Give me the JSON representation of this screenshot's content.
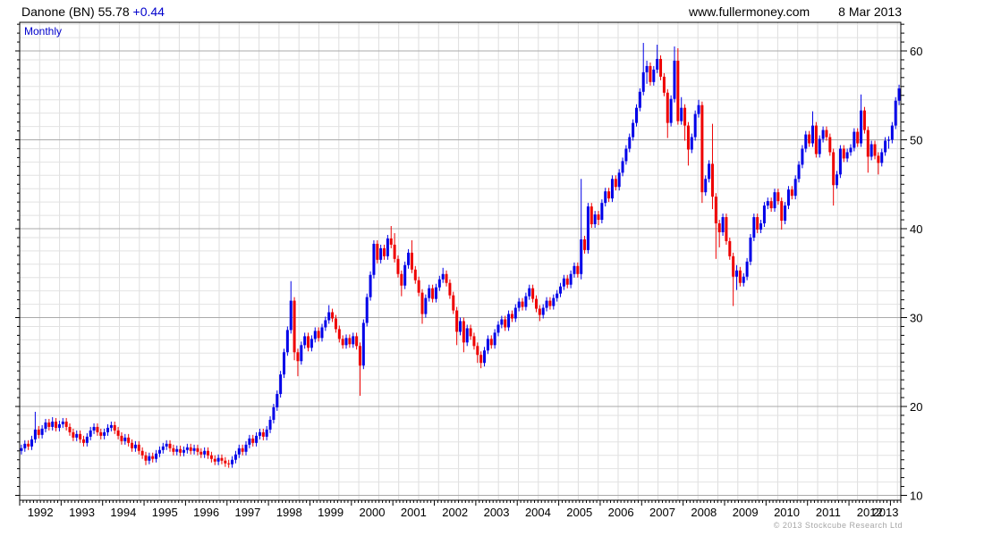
{
  "header": {
    "symbol_price": "Danone (BN) 55.78",
    "change": "+0.44",
    "website": "www.fullermoney.com",
    "date": "8 Mar 2013"
  },
  "chart": {
    "timeframe_label": "Monthly",
    "copyright": "© 2013 Stockcube Research Ltd"
  },
  "chart_data": {
    "type": "candlestick",
    "title": "Danone (BN)",
    "last_price": 55.78,
    "change": "+0.44",
    "timeframe": "Monthly",
    "x_start_year": 1992,
    "x_start_month": 1,
    "x_end_year": 2013,
    "x_end_month": 3,
    "x_tick_labels": [
      "1992",
      "1993",
      "1994",
      "1995",
      "1996",
      "1997",
      "1998",
      "1999",
      "2000",
      "2001",
      "2002",
      "2003",
      "2004",
      "2005",
      "2006",
      "2007",
      "2008",
      "2009",
      "2010",
      "2011",
      "2012",
      "2013"
    ],
    "y_ticks": [
      10,
      20,
      30,
      40,
      50,
      60
    ],
    "ylim": [
      9.5,
      63.2
    ],
    "grid": true,
    "up_color": "#0000e8",
    "down_color": "#ee0000",
    "ohlc_monthly": [
      [
        15.0,
        15.7,
        14.6,
        15.3
      ],
      [
        15.3,
        16.2,
        14.9,
        15.8
      ],
      [
        15.8,
        16.2,
        15.1,
        15.5
      ],
      [
        15.5,
        16.7,
        15.1,
        16.3
      ],
      [
        16.3,
        19.4,
        15.9,
        17.4
      ],
      [
        17.4,
        17.8,
        16.4,
        16.8
      ],
      [
        16.8,
        17.9,
        16.4,
        17.5
      ],
      [
        17.5,
        18.6,
        17.1,
        18.2
      ],
      [
        18.2,
        18.6,
        17.3,
        17.7
      ],
      [
        17.7,
        18.8,
        17.3,
        18.3
      ],
      [
        18.3,
        18.7,
        17.2,
        17.6
      ],
      [
        17.6,
        18.4,
        17.2,
        18.0
      ],
      [
        18.0,
        18.7,
        17.6,
        18.3
      ],
      [
        18.3,
        18.7,
        17.3,
        17.7
      ],
      [
        17.7,
        18.1,
        16.7,
        17.1
      ],
      [
        17.1,
        17.5,
        16.1,
        16.5
      ],
      [
        16.5,
        17.3,
        16.1,
        16.9
      ],
      [
        16.9,
        17.3,
        15.9,
        16.3
      ],
      [
        16.3,
        16.7,
        15.5,
        15.9
      ],
      [
        15.9,
        17.0,
        15.5,
        16.6
      ],
      [
        16.6,
        17.7,
        16.2,
        17.3
      ],
      [
        17.3,
        18.1,
        16.9,
        17.7
      ],
      [
        17.7,
        18.1,
        16.7,
        17.1
      ],
      [
        17.1,
        17.5,
        16.3,
        16.7
      ],
      [
        16.7,
        17.5,
        16.3,
        17.1
      ],
      [
        17.1,
        18.0,
        16.7,
        17.6
      ],
      [
        17.6,
        18.3,
        17.2,
        17.9
      ],
      [
        17.9,
        18.3,
        16.9,
        17.3
      ],
      [
        17.3,
        17.7,
        16.3,
        16.7
      ],
      [
        16.7,
        17.1,
        15.7,
        16.1
      ],
      [
        16.1,
        16.9,
        15.7,
        16.5
      ],
      [
        16.5,
        16.9,
        15.5,
        15.9
      ],
      [
        15.9,
        16.3,
        14.9,
        15.3
      ],
      [
        15.3,
        16.1,
        14.9,
        15.7
      ],
      [
        15.7,
        16.1,
        14.6,
        15.0
      ],
      [
        15.0,
        15.4,
        14.1,
        14.5
      ],
      [
        14.5,
        14.9,
        13.4,
        13.9
      ],
      [
        13.9,
        14.8,
        13.5,
        14.4
      ],
      [
        14.4,
        14.8,
        13.7,
        14.1
      ],
      [
        14.1,
        15.1,
        13.7,
        14.7
      ],
      [
        14.7,
        15.5,
        14.3,
        15.1
      ],
      [
        15.1,
        15.9,
        14.7,
        15.5
      ],
      [
        15.5,
        16.2,
        15.1,
        15.8
      ],
      [
        15.8,
        16.2,
        14.9,
        15.3
      ],
      [
        15.3,
        15.7,
        14.5,
        14.9
      ],
      [
        14.9,
        15.6,
        14.5,
        15.2
      ],
      [
        15.2,
        15.6,
        14.4,
        14.8
      ],
      [
        14.8,
        15.5,
        14.4,
        15.1
      ],
      [
        15.1,
        15.8,
        14.7,
        15.4
      ],
      [
        15.4,
        15.8,
        14.6,
        15.0
      ],
      [
        15.0,
        15.7,
        14.6,
        15.3
      ],
      [
        15.3,
        15.7,
        14.5,
        14.9
      ],
      [
        14.9,
        15.3,
        14.2,
        14.6
      ],
      [
        14.6,
        15.4,
        14.2,
        15.0
      ],
      [
        15.0,
        15.4,
        14.1,
        14.5
      ],
      [
        14.5,
        14.9,
        13.7,
        14.1
      ],
      [
        14.1,
        14.5,
        13.4,
        13.8
      ],
      [
        13.8,
        14.6,
        13.4,
        14.2
      ],
      [
        14.2,
        14.6,
        13.5,
        13.9
      ],
      [
        13.9,
        14.3,
        13.2,
        13.6
      ],
      [
        13.6,
        14.0,
        13.1,
        13.5
      ],
      [
        13.5,
        14.4,
        13.1,
        14.0
      ],
      [
        14.0,
        15.0,
        13.6,
        14.6
      ],
      [
        14.6,
        15.7,
        14.2,
        15.3
      ],
      [
        15.3,
        15.7,
        14.5,
        14.9
      ],
      [
        14.9,
        16.1,
        14.5,
        15.7
      ],
      [
        15.7,
        16.8,
        15.3,
        16.4
      ],
      [
        16.4,
        16.8,
        15.5,
        15.9
      ],
      [
        15.9,
        17.1,
        15.5,
        16.7
      ],
      [
        16.7,
        17.5,
        16.3,
        17.1
      ],
      [
        17.1,
        17.5,
        16.2,
        16.6
      ],
      [
        16.6,
        17.8,
        16.2,
        17.4
      ],
      [
        17.4,
        18.9,
        17.0,
        18.5
      ],
      [
        18.5,
        20.3,
        18.1,
        19.9
      ],
      [
        19.9,
        21.8,
        19.5,
        21.4
      ],
      [
        21.4,
        24.0,
        21.0,
        23.6
      ],
      [
        23.6,
        26.5,
        23.2,
        26.1
      ],
      [
        26.1,
        29.0,
        25.7,
        28.6
      ],
      [
        28.6,
        34.1,
        28.2,
        31.9
      ],
      [
        31.9,
        32.3,
        25.2,
        26.1
      ],
      [
        26.1,
        26.5,
        23.4,
        25.1
      ],
      [
        25.1,
        27.3,
        24.7,
        26.9
      ],
      [
        26.9,
        28.3,
        26.5,
        27.9
      ],
      [
        27.9,
        28.3,
        26.2,
        26.6
      ],
      [
        26.6,
        28.0,
        26.2,
        27.6
      ],
      [
        27.6,
        28.9,
        27.2,
        28.5
      ],
      [
        28.5,
        28.9,
        27.3,
        27.7
      ],
      [
        27.7,
        29.3,
        27.3,
        28.9
      ],
      [
        28.9,
        30.1,
        28.5,
        29.7
      ],
      [
        29.7,
        31.4,
        29.3,
        30.6
      ],
      [
        30.6,
        31.0,
        29.5,
        29.9
      ],
      [
        29.9,
        30.3,
        28.3,
        28.7
      ],
      [
        28.7,
        29.1,
        27.2,
        27.6
      ],
      [
        27.6,
        28.0,
        26.5,
        26.9
      ],
      [
        26.9,
        28.1,
        26.5,
        27.7
      ],
      [
        27.7,
        28.1,
        26.6,
        27.0
      ],
      [
        27.0,
        28.3,
        26.6,
        27.9
      ],
      [
        27.9,
        28.3,
        26.4,
        26.8
      ],
      [
        26.8,
        27.2,
        21.2,
        24.6
      ],
      [
        24.6,
        29.8,
        24.2,
        29.4
      ],
      [
        29.4,
        32.7,
        29.0,
        32.3
      ],
      [
        32.3,
        35.2,
        31.9,
        34.8
      ],
      [
        34.8,
        38.7,
        34.4,
        38.3
      ],
      [
        38.3,
        38.7,
        36.1,
        36.5
      ],
      [
        36.5,
        38.2,
        36.1,
        37.8
      ],
      [
        37.8,
        38.2,
        36.5,
        36.9
      ],
      [
        36.9,
        39.3,
        36.5,
        38.9
      ],
      [
        38.9,
        40.3,
        37.8,
        38.2
      ],
      [
        38.2,
        39.5,
        36.2,
        36.6
      ],
      [
        36.6,
        37.0,
        34.5,
        34.9
      ],
      [
        34.9,
        35.3,
        32.4,
        33.6
      ],
      [
        33.6,
        36.3,
        33.2,
        35.9
      ],
      [
        35.9,
        37.7,
        35.5,
        37.3
      ],
      [
        37.3,
        38.7,
        35.0,
        35.4
      ],
      [
        35.4,
        35.8,
        33.8,
        34.2
      ],
      [
        34.2,
        34.6,
        32.4,
        32.8
      ],
      [
        32.8,
        33.2,
        29.3,
        30.4
      ],
      [
        30.4,
        32.6,
        30.0,
        32.2
      ],
      [
        32.2,
        33.7,
        31.8,
        33.3
      ],
      [
        33.3,
        33.7,
        31.7,
        32.1
      ],
      [
        32.1,
        33.8,
        31.7,
        33.4
      ],
      [
        33.4,
        34.7,
        33.0,
        34.3
      ],
      [
        34.3,
        35.6,
        33.9,
        34.9
      ],
      [
        34.9,
        35.3,
        33.5,
        33.9
      ],
      [
        33.9,
        34.3,
        32.1,
        32.5
      ],
      [
        32.5,
        32.9,
        30.4,
        30.8
      ],
      [
        30.8,
        31.2,
        26.9,
        28.4
      ],
      [
        28.4,
        30.0,
        28.0,
        29.6
      ],
      [
        29.6,
        30.0,
        26.1,
        27.2
      ],
      [
        27.2,
        29.2,
        26.8,
        28.8
      ],
      [
        28.8,
        29.2,
        27.5,
        27.9
      ],
      [
        27.9,
        28.3,
        26.4,
        26.8
      ],
      [
        26.8,
        27.2,
        24.9,
        25.8
      ],
      [
        25.8,
        26.2,
        24.3,
        24.9
      ],
      [
        24.9,
        26.7,
        24.5,
        26.3
      ],
      [
        26.3,
        28.0,
        25.9,
        27.6
      ],
      [
        27.6,
        28.0,
        26.5,
        26.9
      ],
      [
        26.9,
        28.7,
        26.5,
        28.3
      ],
      [
        28.3,
        29.6,
        27.9,
        29.2
      ],
      [
        29.2,
        30.2,
        28.8,
        29.8
      ],
      [
        29.8,
        30.2,
        28.5,
        28.9
      ],
      [
        28.9,
        30.8,
        28.5,
        30.4
      ],
      [
        30.4,
        30.8,
        29.5,
        29.9
      ],
      [
        29.9,
        31.5,
        29.5,
        31.1
      ],
      [
        31.1,
        32.2,
        30.7,
        31.8
      ],
      [
        31.8,
        32.2,
        30.8,
        31.2
      ],
      [
        31.2,
        32.8,
        30.8,
        32.4
      ],
      [
        32.4,
        33.7,
        32.0,
        33.3
      ],
      [
        33.3,
        33.7,
        31.7,
        32.1
      ],
      [
        32.1,
        32.5,
        30.6,
        31.0
      ],
      [
        31.0,
        31.4,
        29.6,
        30.3
      ],
      [
        30.3,
        31.5,
        29.9,
        31.1
      ],
      [
        31.1,
        32.3,
        30.7,
        31.9
      ],
      [
        31.9,
        32.3,
        30.9,
        31.3
      ],
      [
        31.3,
        32.6,
        30.9,
        32.2
      ],
      [
        32.2,
        33.1,
        31.8,
        32.7
      ],
      [
        32.7,
        33.9,
        32.3,
        33.5
      ],
      [
        33.5,
        34.8,
        33.1,
        34.4
      ],
      [
        34.4,
        34.8,
        33.3,
        33.7
      ],
      [
        33.7,
        35.3,
        33.3,
        34.9
      ],
      [
        34.9,
        36.2,
        34.5,
        35.8
      ],
      [
        35.8,
        36.2,
        34.5,
        34.9
      ],
      [
        34.9,
        45.6,
        34.3,
        38.8
      ],
      [
        38.8,
        39.2,
        37.2,
        37.6
      ],
      [
        37.6,
        42.9,
        37.2,
        42.5
      ],
      [
        42.5,
        42.9,
        40.1,
        40.5
      ],
      [
        40.5,
        42.0,
        40.1,
        41.6
      ],
      [
        41.6,
        42.0,
        40.4,
        41.0
      ],
      [
        41.0,
        43.3,
        40.6,
        42.9
      ],
      [
        42.9,
        44.6,
        42.5,
        44.2
      ],
      [
        44.2,
        44.6,
        43.0,
        43.4
      ],
      [
        43.4,
        46.0,
        43.0,
        45.6
      ],
      [
        45.6,
        46.0,
        44.3,
        44.7
      ],
      [
        44.7,
        46.7,
        44.3,
        46.3
      ],
      [
        46.3,
        48.0,
        45.9,
        47.6
      ],
      [
        47.6,
        49.4,
        47.2,
        49.0
      ],
      [
        49.0,
        50.7,
        48.6,
        50.3
      ],
      [
        50.3,
        52.3,
        49.9,
        51.9
      ],
      [
        51.9,
        54.0,
        51.5,
        53.6
      ],
      [
        53.6,
        55.8,
        53.2,
        55.4
      ],
      [
        55.4,
        60.9,
        55.0,
        57.6
      ],
      [
        57.6,
        58.9,
        56.3,
        58.3
      ],
      [
        58.3,
        58.7,
        56.1,
        56.5
      ],
      [
        56.5,
        58.3,
        56.1,
        57.9
      ],
      [
        57.9,
        60.7,
        57.5,
        59.1
      ],
      [
        59.1,
        59.5,
        56.7,
        57.1
      ],
      [
        57.1,
        57.5,
        54.9,
        55.3
      ],
      [
        55.3,
        55.7,
        50.2,
        51.9
      ],
      [
        51.9,
        55.0,
        51.5,
        54.6
      ],
      [
        54.6,
        60.5,
        54.2,
        58.9
      ],
      [
        58.9,
        60.3,
        51.7,
        52.1
      ],
      [
        52.1,
        54.8,
        51.7,
        53.6
      ],
      [
        53.6,
        54.0,
        49.9,
        51.6
      ],
      [
        51.6,
        52.0,
        47.1,
        48.9
      ],
      [
        48.9,
        50.7,
        48.5,
        50.3
      ],
      [
        50.3,
        53.3,
        49.9,
        52.9
      ],
      [
        52.9,
        54.5,
        52.5,
        53.9
      ],
      [
        53.9,
        54.3,
        42.9,
        44.1
      ],
      [
        44.1,
        46.0,
        43.7,
        45.6
      ],
      [
        45.6,
        47.7,
        45.2,
        47.3
      ],
      [
        47.3,
        51.8,
        42.2,
        43.6
      ],
      [
        43.6,
        44.0,
        36.6,
        40.6
      ],
      [
        40.6,
        41.0,
        37.9,
        39.6
      ],
      [
        39.6,
        41.7,
        39.2,
        41.3
      ],
      [
        41.3,
        41.7,
        38.2,
        38.6
      ],
      [
        38.6,
        39.0,
        36.5,
        36.9
      ],
      [
        36.9,
        37.3,
        31.3,
        34.6
      ],
      [
        34.6,
        35.9,
        33.1,
        35.3
      ],
      [
        35.3,
        35.7,
        33.5,
        33.9
      ],
      [
        33.9,
        35.0,
        33.5,
        34.6
      ],
      [
        34.6,
        36.7,
        34.2,
        36.3
      ],
      [
        36.3,
        39.4,
        35.9,
        39.0
      ],
      [
        39.0,
        41.7,
        38.6,
        41.3
      ],
      [
        41.3,
        41.7,
        39.5,
        39.9
      ],
      [
        39.9,
        41.0,
        39.5,
        40.6
      ],
      [
        40.6,
        43.0,
        40.2,
        42.6
      ],
      [
        42.6,
        43.5,
        42.2,
        43.1
      ],
      [
        43.1,
        43.5,
        41.9,
        42.3
      ],
      [
        42.3,
        44.5,
        41.9,
        44.1
      ],
      [
        44.1,
        44.5,
        42.7,
        43.1
      ],
      [
        43.1,
        43.5,
        39.9,
        40.9
      ],
      [
        40.9,
        43.0,
        40.5,
        42.6
      ],
      [
        42.6,
        44.8,
        42.2,
        44.4
      ],
      [
        44.4,
        44.8,
        43.3,
        43.7
      ],
      [
        43.7,
        46.0,
        43.3,
        45.6
      ],
      [
        45.6,
        47.6,
        45.2,
        47.2
      ],
      [
        47.2,
        49.4,
        46.8,
        49.0
      ],
      [
        49.0,
        51.0,
        48.6,
        50.6
      ],
      [
        50.6,
        51.0,
        49.2,
        49.6
      ],
      [
        49.6,
        53.2,
        49.2,
        51.6
      ],
      [
        51.6,
        52.0,
        48.0,
        48.4
      ],
      [
        48.4,
        50.5,
        48.0,
        50.1
      ],
      [
        50.1,
        51.5,
        49.7,
        51.1
      ],
      [
        51.1,
        51.5,
        49.9,
        50.3
      ],
      [
        50.3,
        50.7,
        48.2,
        48.6
      ],
      [
        48.6,
        49.0,
        42.6,
        44.9
      ],
      [
        44.9,
        46.5,
        44.5,
        46.1
      ],
      [
        46.1,
        49.4,
        45.7,
        49.0
      ],
      [
        49.0,
        49.4,
        47.5,
        47.9
      ],
      [
        47.9,
        49.0,
        47.5,
        48.6
      ],
      [
        48.6,
        49.5,
        48.2,
        49.1
      ],
      [
        49.1,
        51.3,
        48.7,
        50.9
      ],
      [
        50.9,
        51.3,
        49.2,
        49.6
      ],
      [
        49.6,
        55.1,
        49.2,
        53.3
      ],
      [
        53.3,
        53.7,
        50.7,
        51.1
      ],
      [
        51.1,
        51.5,
        46.3,
        48.1
      ],
      [
        48.1,
        49.9,
        47.7,
        49.5
      ],
      [
        49.5,
        49.9,
        47.8,
        48.2
      ],
      [
        48.2,
        48.6,
        46.1,
        47.4
      ],
      [
        47.4,
        49.0,
        47.0,
        48.6
      ],
      [
        48.6,
        50.3,
        48.2,
        49.9
      ],
      [
        49.9,
        50.4,
        49.0,
        50.0
      ],
      [
        50.0,
        52.0,
        49.6,
        51.6
      ],
      [
        51.6,
        54.8,
        51.2,
        54.4
      ],
      [
        54.4,
        56.2,
        53.9,
        55.78
      ]
    ]
  }
}
